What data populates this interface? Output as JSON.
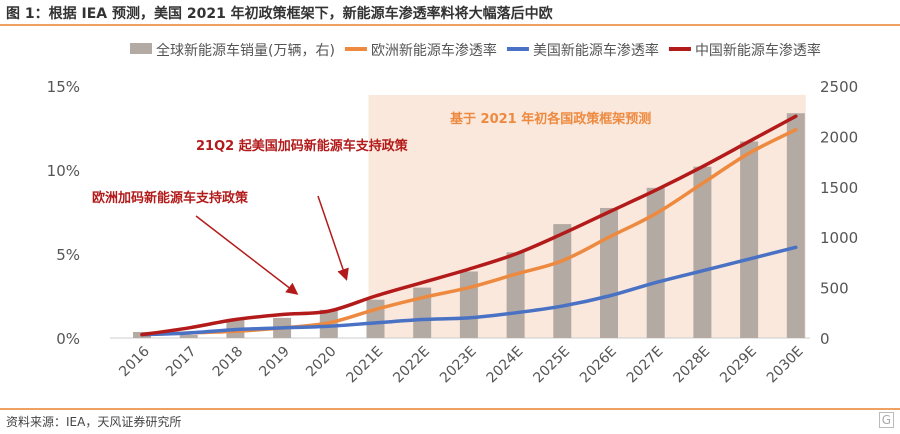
{
  "title": "图 1：根据 IEA 预测，美国 2021 年初政策框架下，新能源车渗透率料将大幅落后中欧",
  "source": "资料来源：IEA，天风证券研究所",
  "watermark": "格隆汇",
  "chart_data": {
    "type": "bar+line",
    "categories": [
      "2016",
      "2017",
      "2018",
      "2019",
      "2020",
      "2021E",
      "2022E",
      "2023E",
      "2024E",
      "2025E",
      "2026E",
      "2027E",
      "2028E",
      "2029E",
      "2030E"
    ],
    "y_left": {
      "range": [
        0,
        15
      ],
      "ticks": [
        "0%",
        "5%",
        "10%",
        "15%"
      ],
      "tick_values": [
        0,
        5,
        10,
        15
      ]
    },
    "y_right": {
      "range": [
        0,
        2500
      ],
      "ticks": [
        "0",
        "500",
        "1000",
        "1500",
        "2000",
        "2500"
      ],
      "tick_values": [
        0,
        500,
        1000,
        1500,
        2000,
        2500
      ]
    },
    "bars": {
      "name": "全球新能源车销量(万辆，右)",
      "axis": "right",
      "color": "#b3aaa3",
      "values": [
        60,
        30,
        190,
        200,
        280,
        380,
        500,
        660,
        850,
        1130,
        1290,
        1490,
        1700,
        1950,
        2230
      ]
    },
    "series": [
      {
        "name": "欧洲新能源车渗透率",
        "color": "#ed8a3f",
        "values": [
          0.2,
          0.3,
          0.4,
          0.6,
          0.9,
          1.7,
          2.4,
          3.0,
          3.8,
          4.6,
          6.0,
          7.4,
          9.2,
          11.0,
          12.4
        ]
      },
      {
        "name": "美国新能源车渗透率",
        "color": "#4a72c4",
        "values": [
          0.2,
          0.3,
          0.5,
          0.6,
          0.7,
          0.9,
          1.1,
          1.2,
          1.5,
          1.9,
          2.5,
          3.3,
          4.0,
          4.7,
          5.4
        ]
      },
      {
        "name": "中国新能源车渗透率",
        "color": "#b31b1b",
        "values": [
          0.2,
          0.6,
          1.1,
          1.4,
          1.6,
          2.5,
          3.3,
          4.1,
          5.0,
          6.2,
          7.5,
          8.8,
          10.2,
          11.7,
          13.2
        ]
      }
    ],
    "forecast_region": {
      "from": "2021E",
      "to": "2030E",
      "label": "基于 2021 年初各国政策框架预测",
      "color": "#fbe8dd"
    },
    "annotations": [
      {
        "text": "21Q2 起美国加码新能源车支持政策",
        "target": "2021E",
        "color": "#b31b1b"
      },
      {
        "text": "欧洲加码新能源车支持政策",
        "target": "2020",
        "color": "#b31b1b"
      }
    ],
    "legend_position": "top",
    "grid": false
  }
}
